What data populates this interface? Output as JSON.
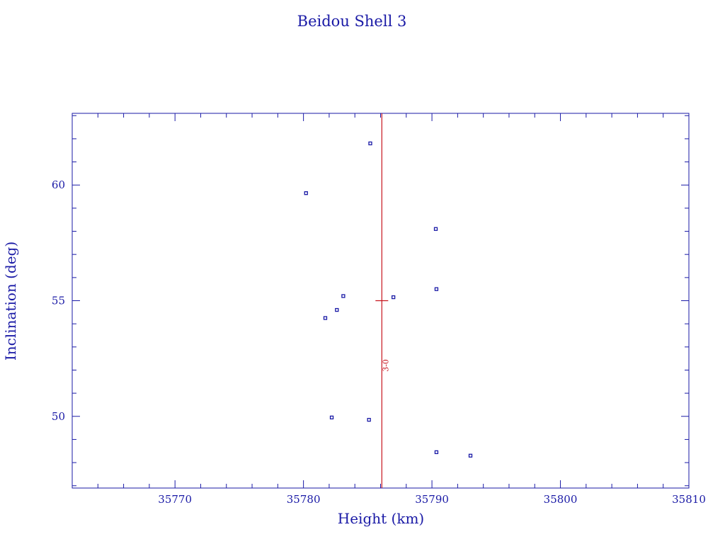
{
  "chart_data": {
    "type": "scatter",
    "title": "Beidou Shell 3",
    "xlabel": "Height (km)",
    "ylabel": "Inclination (deg)",
    "xlim": [
      35762,
      35810
    ],
    "ylim": [
      46.9,
      63.1
    ],
    "x_ticks": [
      35770,
      35780,
      35790,
      35800,
      35810
    ],
    "x_tick_labels": [
      "35770",
      "35780",
      "35790",
      "35800",
      "35810"
    ],
    "y_ticks": [
      50,
      55,
      60
    ],
    "y_tick_labels": [
      "50",
      "55",
      "60"
    ],
    "grid": false,
    "series": [
      {
        "points": [
          {
            "x": 35785.2,
            "y": 61.8
          },
          {
            "x": 35780.2,
            "y": 59.65
          },
          {
            "x": 35790.3,
            "y": 58.1
          },
          {
            "x": 35790.35,
            "y": 55.5
          },
          {
            "x": 35783.1,
            "y": 55.2
          },
          {
            "x": 35787.0,
            "y": 55.15
          },
          {
            "x": 35782.6,
            "y": 54.6
          },
          {
            "x": 35781.7,
            "y": 54.25
          },
          {
            "x": 35782.2,
            "y": 49.95
          },
          {
            "x": 35785.1,
            "y": 49.85
          },
          {
            "x": 35790.35,
            "y": 48.45
          },
          {
            "x": 35793.0,
            "y": 48.3
          }
        ]
      }
    ],
    "reference_line": {
      "x": 35786.1,
      "marker_y": 55.0,
      "label": "3-0",
      "label_y": 52.2
    },
    "colors": {
      "axis": "#1a1aa6",
      "points": "#1a1aa6",
      "reference": "#c8141e"
    }
  }
}
